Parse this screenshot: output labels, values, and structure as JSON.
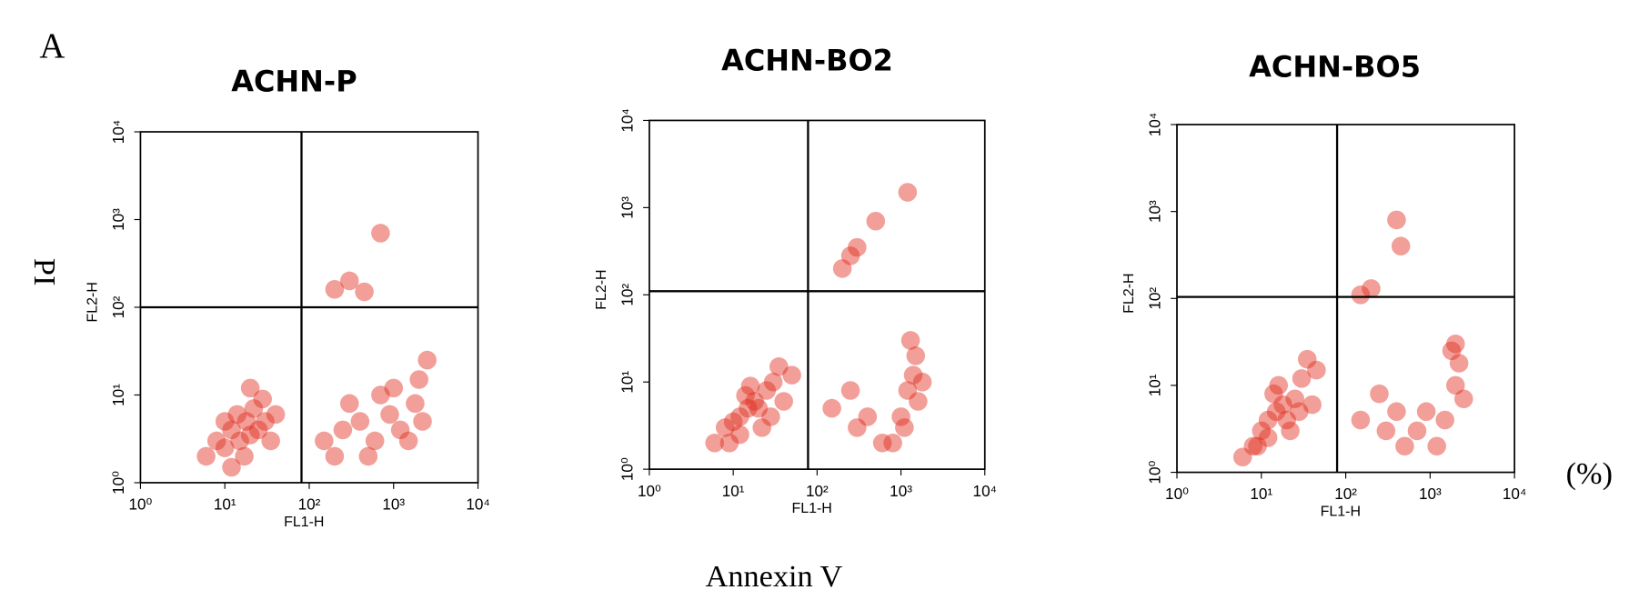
{
  "panel_label": "A",
  "y_label": "PI",
  "x_label": "Annexin V",
  "unit": "(%)",
  "chart_data": [
    {
      "type": "scatter",
      "title": "ACHN-P",
      "xlabel": "FL1-H",
      "ylabel": "FL2-H",
      "xscale": "log",
      "yscale": "log",
      "xlim": [
        1,
        10000
      ],
      "ylim": [
        1,
        10000
      ],
      "xticks": [
        {
          "value": 1,
          "label": "10⁰"
        },
        {
          "value": 10,
          "label": "10¹"
        },
        {
          "value": 100,
          "label": "10²"
        },
        {
          "value": 1000,
          "label": "10³"
        },
        {
          "value": 10000,
          "label": "10⁴"
        }
      ],
      "yticks": [
        {
          "value": 1,
          "label": "10⁰"
        },
        {
          "value": 10,
          "label": "10¹"
        },
        {
          "value": 100,
          "label": "10²"
        },
        {
          "value": 1000,
          "label": "10³"
        },
        {
          "value": 10000,
          "label": "10⁴"
        }
      ],
      "gates": {
        "x": 81,
        "y": 100
      },
      "color": "#e02a1a",
      "x": [
        8,
        10,
        12,
        15,
        18,
        20,
        25,
        14,
        22,
        30,
        10,
        6,
        35,
        17,
        28,
        40,
        12,
        20,
        150,
        250,
        400,
        600,
        900,
        1200,
        1800,
        2000,
        2500,
        300,
        700,
        1500,
        200,
        1000,
        2200,
        500,
        300,
        450,
        700,
        200
      ],
      "values": [
        3,
        2.5,
        4,
        3,
        5,
        3.5,
        4,
        6,
        7,
        5,
        5,
        2,
        3,
        2,
        9,
        6,
        1.5,
        12,
        3,
        4,
        5,
        3,
        6,
        4,
        8,
        15,
        25,
        8,
        10,
        3,
        2,
        12,
        5,
        2,
        200,
        150,
        700,
        160
      ]
    },
    {
      "type": "scatter",
      "title": "ACHN-BO2",
      "xlabel": "FL1-H",
      "ylabel": "FL2-H",
      "xscale": "log",
      "yscale": "log",
      "xlim": [
        1,
        10000
      ],
      "ylim": [
        1,
        10000
      ],
      "xticks": [
        {
          "value": 1,
          "label": "10⁰"
        },
        {
          "value": 10,
          "label": "10¹"
        },
        {
          "value": 100,
          "label": "10²"
        },
        {
          "value": 1000,
          "label": "10³"
        },
        {
          "value": 10000,
          "label": "10⁴"
        }
      ],
      "yticks": [
        {
          "value": 1,
          "label": "10⁰"
        },
        {
          "value": 10,
          "label": "10¹"
        },
        {
          "value": 100,
          "label": "10²"
        },
        {
          "value": 1000,
          "label": "10³"
        },
        {
          "value": 10000,
          "label": "10⁴"
        }
      ],
      "gates": {
        "x": 78,
        "y": 110
      },
      "color": "#e02a1a",
      "x": [
        6,
        8,
        10,
        12,
        15,
        18,
        20,
        25,
        14,
        30,
        9,
        22,
        35,
        40,
        16,
        12,
        50,
        28,
        150,
        300,
        600,
        1000,
        1200,
        1400,
        1500,
        1300,
        1600,
        800,
        250,
        1100,
        1800,
        400,
        250,
        300,
        500,
        1200,
        200
      ],
      "values": [
        2,
        3,
        3.5,
        4,
        5,
        6,
        5,
        8,
        7,
        10,
        2,
        3,
        15,
        6,
        9,
        2.5,
        12,
        4,
        5,
        3,
        2,
        4,
        8,
        12,
        20,
        30,
        6,
        2,
        8,
        3,
        10,
        4,
        280,
        350,
        700,
        1500,
        200
      ]
    },
    {
      "type": "scatter",
      "title": "ACHN-BO5",
      "xlabel": "FL1-H",
      "ylabel": "FL2-H",
      "xscale": "log",
      "yscale": "log",
      "xlim": [
        1,
        10000
      ],
      "ylim": [
        1,
        10000
      ],
      "xticks": [
        {
          "value": 1,
          "label": "10⁰"
        },
        {
          "value": 10,
          "label": "10¹"
        },
        {
          "value": 100,
          "label": "10²"
        },
        {
          "value": 1000,
          "label": "10³"
        },
        {
          "value": 10000,
          "label": "10⁴"
        }
      ],
      "yticks": [
        {
          "value": 1,
          "label": "10⁰"
        },
        {
          "value": 10,
          "label": "10¹"
        },
        {
          "value": 100,
          "label": "10²"
        },
        {
          "value": 1000,
          "label": "10³"
        },
        {
          "value": 10000,
          "label": "10⁴"
        }
      ],
      "gates": {
        "x": 79,
        "y": 104
      },
      "color": "#e02a1a",
      "x": [
        8,
        10,
        12,
        15,
        18,
        20,
        25,
        14,
        30,
        9,
        22,
        35,
        40,
        16,
        12,
        45,
        28,
        6,
        150,
        300,
        500,
        900,
        1500,
        2000,
        2200,
        1800,
        2500,
        700,
        250,
        1200,
        2000,
        400,
        200,
        400,
        450,
        150
      ],
      "values": [
        2,
        3,
        4,
        5,
        6,
        4,
        7,
        8,
        12,
        2,
        3,
        20,
        6,
        10,
        2.5,
        15,
        5,
        1.5,
        4,
        3,
        2,
        5,
        4,
        10,
        18,
        25,
        7,
        3,
        8,
        2,
        30,
        5,
        130,
        800,
        400,
        110
      ]
    }
  ]
}
